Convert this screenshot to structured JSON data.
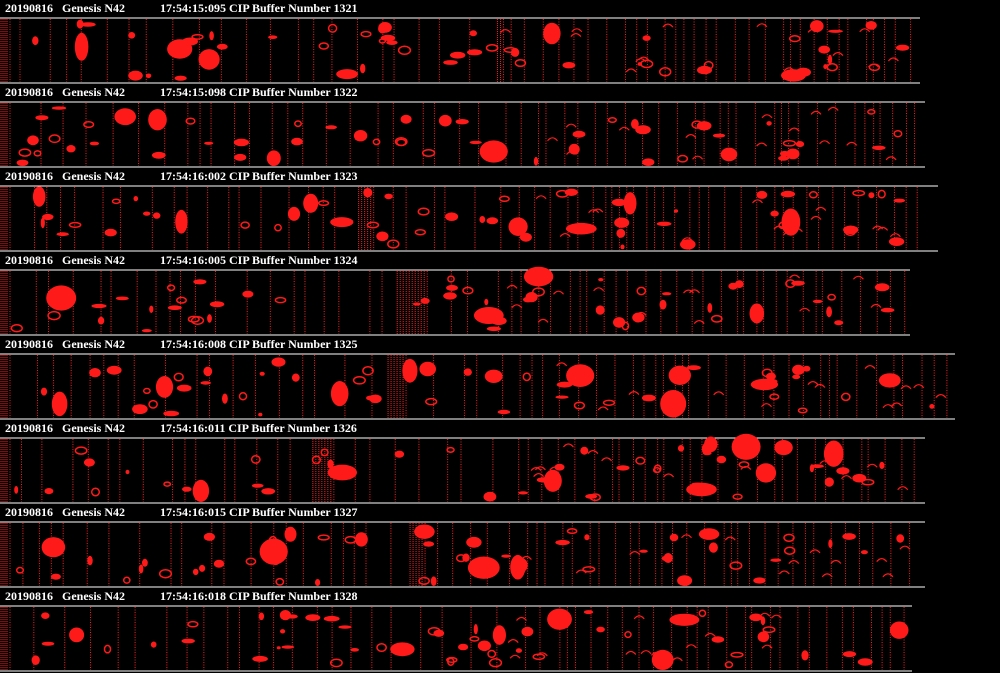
{
  "strips": [
    {
      "date": "20190816",
      "probe": "Genesis N42",
      "caption": "17:54:15:095 CIP Buffer Number 1321"
    },
    {
      "date": "20190816",
      "probe": "Genesis N42",
      "caption": "17:54:15:098 CIP Buffer Number 1322"
    },
    {
      "date": "20190816",
      "probe": "Genesis N42",
      "caption": "17:54:16:002 CIP Buffer Number 1323"
    },
    {
      "date": "20190816",
      "probe": "Genesis N42",
      "caption": "17:54:16:005 CIP Buffer Number 1324"
    },
    {
      "date": "20190816",
      "probe": "Genesis N42",
      "caption": "17:54:16:008 CIP Buffer Number 1325"
    },
    {
      "date": "20190816",
      "probe": "Genesis N42",
      "caption": "17:54:16:011 CIP Buffer Number 1326"
    },
    {
      "date": "20190816",
      "probe": "Genesis N42",
      "caption": "17:54:16:015 CIP Buffer Number 1327"
    },
    {
      "date": "20190816",
      "probe": "Genesis N42",
      "caption": "17:54:16:018 CIP Buffer Number 1328"
    }
  ]
}
